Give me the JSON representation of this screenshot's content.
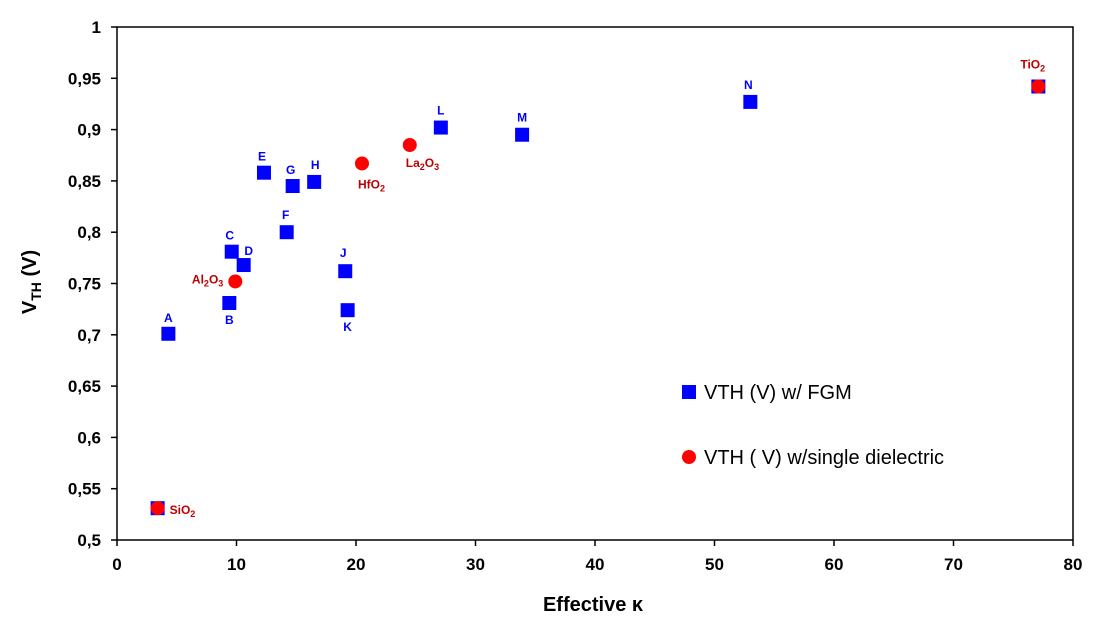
{
  "chart_data": {
    "type": "scatter",
    "title": "",
    "xlabel": "Effective κ",
    "ylabel_main": "V",
    "ylabel_sub": "TH",
    "ylabel_tail": " (V)",
    "xlim": [
      0,
      80
    ],
    "ylim": [
      0.5,
      1.0
    ],
    "x_ticks": [
      "0",
      "10",
      "20",
      "30",
      "40",
      "50",
      "60",
      "70",
      "80"
    ],
    "x_tick_values": [
      0,
      10,
      20,
      30,
      40,
      50,
      60,
      70,
      80
    ],
    "y_ticks": [
      "0,5",
      "0,55",
      "0,6",
      "0,65",
      "0,7",
      "0,75",
      "0,8",
      "0,85",
      "0,9",
      "0,95",
      "1"
    ],
    "y_tick_values": [
      0.5,
      0.55,
      0.6,
      0.65,
      0.7,
      0.75,
      0.8,
      0.85,
      0.9,
      0.95,
      1.0
    ],
    "grid": false,
    "legend_position": "lower-right",
    "colors": {
      "fgm": "#0000FF",
      "single": "#FF0000",
      "fgm_label": "#0000FF",
      "single_label": "#C00000"
    },
    "series": [
      {
        "name": "VTH (V) w/ FGM",
        "marker": "square",
        "points": [
          {
            "label": "A",
            "x": 4.3,
            "y": 0.701
          },
          {
            "label": "B",
            "x": 9.4,
            "y": 0.731
          },
          {
            "label": "C",
            "x": 9.6,
            "y": 0.781
          },
          {
            "label": "D",
            "x": 10.6,
            "y": 0.768
          },
          {
            "label": "E",
            "x": 12.3,
            "y": 0.858
          },
          {
            "label": "F",
            "x": 14.2,
            "y": 0.8
          },
          {
            "label": "G",
            "x": 14.7,
            "y": 0.845
          },
          {
            "label": "H",
            "x": 16.5,
            "y": 0.849
          },
          {
            "label": "J",
            "x": 19.1,
            "y": 0.762
          },
          {
            "label": "K",
            "x": 19.3,
            "y": 0.724
          },
          {
            "label": "L",
            "x": 27.1,
            "y": 0.902
          },
          {
            "label": "M",
            "x": 33.9,
            "y": 0.895
          },
          {
            "label": "N",
            "x": 53.0,
            "y": 0.927
          },
          {
            "label": "",
            "x": 3.4,
            "y": 0.531
          },
          {
            "label": "",
            "x": 77.1,
            "y": 0.942
          }
        ]
      },
      {
        "name": "VTH ( V) w/single dielectric",
        "marker": "circle",
        "points": [
          {
            "label": "SiO",
            "sub": "2",
            "subtail": "",
            "x": 3.4,
            "y": 0.531
          },
          {
            "label": "Al",
            "sub": "2",
            "mid": "O",
            "sub2": "3",
            "x": 9.9,
            "y": 0.752
          },
          {
            "label": "HfO",
            "sub": "2",
            "x": 20.5,
            "y": 0.867
          },
          {
            "label": "La",
            "sub": "2",
            "mid": "O",
            "sub2": "3",
            "x": 24.5,
            "y": 0.885
          },
          {
            "label": "TiO",
            "sub": "2",
            "x": 77.1,
            "y": 0.942
          }
        ]
      }
    ]
  }
}
